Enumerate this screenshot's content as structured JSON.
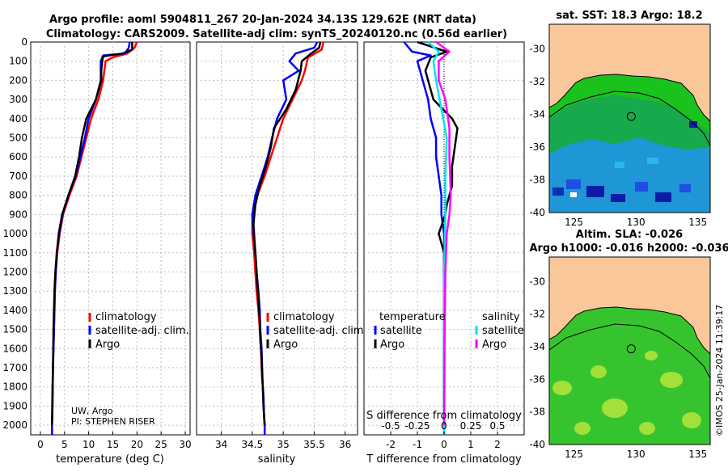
{
  "title": {
    "line1": "Argo profile: aoml 5904811_267 20-Jan-2024 34.13S 129.62E (NRT data)",
    "line2": "Climatology: CARS2009. Satellite-adj clim: synTS_20240120.nc (0.56d earlier)"
  },
  "depth_ticks": [
    "0",
    "100",
    "200",
    "300",
    "400",
    "500",
    "600",
    "700",
    "800",
    "900",
    "1000",
    "1100",
    "1200",
    "1300",
    "1400",
    "1500",
    "1600",
    "1700",
    "1800",
    "1900",
    "2000"
  ],
  "chart_data": [
    {
      "type": "line",
      "name": "temperature-profile",
      "xlabel": "temperature (deg C)",
      "xlim": [
        -2,
        31
      ],
      "ylim": [
        0,
        2050
      ],
      "y_inverted": true,
      "xticks": [
        0,
        5,
        10,
        15,
        20,
        25,
        30
      ],
      "xtick_labels": [
        "0",
        "5",
        "10",
        "15",
        "20",
        "25",
        "30"
      ],
      "legend": [
        "climatology",
        "satellite-adj. clim.",
        "Argo"
      ],
      "legend_placement": "lower-right",
      "note_lines": [
        "UW, Argo",
        "PI: STEPHEN RISER"
      ],
      "series": [
        {
          "name": "climatology",
          "color": "#ff0000",
          "points": [
            [
              20,
              0
            ],
            [
              19.5,
              30
            ],
            [
              18,
              60
            ],
            [
              15,
              80
            ],
            [
              13.5,
              100
            ],
            [
              13,
              200
            ],
            [
              12,
              300
            ],
            [
              10.5,
              400
            ],
            [
              9.5,
              500
            ],
            [
              8.5,
              600
            ],
            [
              7.5,
              700
            ],
            [
              6,
              800
            ],
            [
              4.7,
              900
            ],
            [
              4,
              1000
            ],
            [
              3.5,
              1100
            ],
            [
              3.2,
              1200
            ],
            [
              3,
              1300
            ],
            [
              2.9,
              1400
            ],
            [
              2.8,
              1500
            ],
            [
              2.7,
              1600
            ],
            [
              2.6,
              1700
            ],
            [
              2.55,
              1800
            ],
            [
              2.5,
              1900
            ],
            [
              2.4,
              2000
            ],
            [
              2.4,
              2050
            ]
          ]
        },
        {
          "name": "satellite-adj. clim.",
          "color": "#0000ff",
          "points": [
            [
              18.5,
              0
            ],
            [
              18.3,
              30
            ],
            [
              17.5,
              60
            ],
            [
              13,
              70
            ],
            [
              12.5,
              100
            ],
            [
              12.5,
              200
            ],
            [
              11.5,
              300
            ],
            [
              10,
              400
            ],
            [
              9.2,
              500
            ],
            [
              8.3,
              600
            ],
            [
              7.3,
              700
            ],
            [
              5.8,
              800
            ],
            [
              4.6,
              900
            ],
            [
              3.9,
              1000
            ],
            [
              3.4,
              1100
            ],
            [
              3.2,
              1200
            ],
            [
              3,
              1300
            ],
            [
              2.9,
              1400
            ],
            [
              2.8,
              1500
            ],
            [
              2.7,
              1600
            ],
            [
              2.6,
              1700
            ],
            [
              2.55,
              1800
            ],
            [
              2.5,
              1900
            ],
            [
              2.4,
              2000
            ],
            [
              2.4,
              2050
            ]
          ]
        },
        {
          "name": "Argo",
          "color": "#000000",
          "points": [
            [
              19,
              0
            ],
            [
              19,
              40
            ],
            [
              17,
              60
            ],
            [
              13,
              75
            ],
            [
              12.8,
              100
            ],
            [
              12.6,
              150
            ],
            [
              12.6,
              200
            ],
            [
              11.5,
              300
            ],
            [
              9.5,
              400
            ],
            [
              8.6,
              500
            ],
            [
              8,
              600
            ],
            [
              7.2,
              700
            ],
            [
              5.8,
              800
            ],
            [
              4.5,
              900
            ],
            [
              3.8,
              1000
            ],
            [
              3.4,
              1100
            ],
            [
              3.1,
              1200
            ],
            [
              2.9,
              1300
            ],
            [
              2.8,
              1400
            ],
            [
              2.7,
              1500
            ],
            [
              2.65,
              1600
            ],
            [
              2.6,
              1700
            ],
            [
              2.5,
              1800
            ],
            [
              2.45,
              1900
            ],
            [
              2.4,
              2000
            ]
          ]
        }
      ]
    },
    {
      "type": "line",
      "name": "salinity-profile",
      "xlabel": "salinity",
      "xlim": [
        33.6,
        36.2
      ],
      "ylim": [
        0,
        2050
      ],
      "y_inverted": true,
      "xticks": [
        34,
        34.5,
        35,
        35.5,
        36
      ],
      "xtick_labels": [
        "34",
        "34.5",
        "35",
        "35.5",
        "36"
      ],
      "legend": [
        "climatology",
        "satellite-adj. clim.",
        "Argo"
      ],
      "legend_placement": "lower-right",
      "series": [
        {
          "name": "climatology",
          "color": "#ff0000",
          "points": [
            [
              35.65,
              0
            ],
            [
              35.62,
              40
            ],
            [
              35.4,
              80
            ],
            [
              35.35,
              150
            ],
            [
              35.3,
              200
            ],
            [
              35.15,
              300
            ],
            [
              35.0,
              400
            ],
            [
              34.9,
              500
            ],
            [
              34.8,
              600
            ],
            [
              34.7,
              700
            ],
            [
              34.58,
              800
            ],
            [
              34.5,
              900
            ],
            [
              34.5,
              1000
            ],
            [
              34.53,
              1100
            ],
            [
              34.55,
              1200
            ],
            [
              34.57,
              1300
            ],
            [
              34.6,
              1400
            ],
            [
              34.62,
              1500
            ],
            [
              34.64,
              1600
            ],
            [
              34.65,
              1700
            ],
            [
              34.67,
              1800
            ],
            [
              34.68,
              1900
            ],
            [
              34.7,
              2000
            ],
            [
              34.7,
              2050
            ]
          ]
        },
        {
          "name": "satellite-adj. clim.",
          "color": "#0000ff",
          "points": [
            [
              35.55,
              0
            ],
            [
              35.5,
              30
            ],
            [
              35.2,
              60
            ],
            [
              35.1,
              100
            ],
            [
              35.25,
              150
            ],
            [
              35.0,
              200
            ],
            [
              35.05,
              300
            ],
            [
              34.9,
              400
            ],
            [
              34.82,
              500
            ],
            [
              34.75,
              600
            ],
            [
              34.65,
              700
            ],
            [
              34.55,
              800
            ],
            [
              34.5,
              900
            ],
            [
              34.52,
              1000
            ],
            [
              34.55,
              1100
            ],
            [
              34.57,
              1200
            ],
            [
              34.6,
              1300
            ],
            [
              34.62,
              1400
            ],
            [
              34.63,
              1500
            ],
            [
              34.65,
              1600
            ],
            [
              34.66,
              1700
            ],
            [
              34.67,
              1800
            ],
            [
              34.68,
              1900
            ],
            [
              34.7,
              2000
            ],
            [
              34.7,
              2050
            ]
          ]
        },
        {
          "name": "Argo",
          "color": "#000000",
          "points": [
            [
              35.6,
              0
            ],
            [
              35.58,
              30
            ],
            [
              35.45,
              60
            ],
            [
              35.3,
              100
            ],
            [
              35.28,
              150
            ],
            [
              35.2,
              250
            ],
            [
              35.05,
              350
            ],
            [
              34.85,
              450
            ],
            [
              34.8,
              550
            ],
            [
              34.72,
              650
            ],
            [
              34.62,
              750
            ],
            [
              34.55,
              850
            ],
            [
              34.52,
              950
            ],
            [
              34.54,
              1050
            ],
            [
              34.56,
              1150
            ],
            [
              34.58,
              1250
            ],
            [
              34.6,
              1350
            ],
            [
              34.62,
              1450
            ],
            [
              34.63,
              1550
            ],
            [
              34.65,
              1650
            ],
            [
              34.66,
              1750
            ],
            [
              34.68,
              1850
            ],
            [
              34.69,
              1950
            ],
            [
              34.7,
              2000
            ]
          ]
        }
      ]
    },
    {
      "type": "line",
      "name": "difference-profile",
      "xlabel": "T difference from climatology",
      "top_xlabel": "S difference from climatology",
      "xlim": [
        -3,
        3
      ],
      "ylim": [
        0,
        2050
      ],
      "y_inverted": true,
      "xticks": [
        -2,
        -1,
        0,
        1,
        2
      ],
      "xtick_labels": [
        "-2",
        "-1",
        "0",
        "1",
        "2"
      ],
      "top_tick_labels": [
        "-0.5",
        "-0.25",
        "0",
        "0.25",
        "0.5"
      ],
      "legend_temperature_title": "temperature",
      "legend_salinity_title": "salinity",
      "legend_temperature": [
        "satellite",
        "Argo"
      ],
      "legend_salinity": [
        "satellite",
        "Argo"
      ],
      "series": [
        {
          "name": "temperature satellite",
          "color": "#0000ff",
          "points": [
            [
              -1.5,
              0
            ],
            [
              -1.2,
              50
            ],
            [
              -0.5,
              70
            ],
            [
              -1.0,
              100
            ],
            [
              -0.8,
              200
            ],
            [
              -0.6,
              300
            ],
            [
              -0.5,
              400
            ],
            [
              -0.3,
              500
            ],
            [
              -0.3,
              600
            ],
            [
              -0.2,
              700
            ],
            [
              -0.1,
              800
            ],
            [
              -0.1,
              900
            ],
            [
              0,
              1000
            ],
            [
              0,
              1500
            ],
            [
              0,
              2000
            ],
            [
              0,
              2050
            ]
          ]
        },
        {
          "name": "temperature Argo",
          "color": "#000000",
          "points": [
            [
              -1.0,
              0
            ],
            [
              0.1,
              50
            ],
            [
              -0.5,
              80
            ],
            [
              -0.7,
              150
            ],
            [
              -0.4,
              300
            ],
            [
              0.3,
              400
            ],
            [
              0.5,
              450
            ],
            [
              0.4,
              550
            ],
            [
              0.3,
              650
            ],
            [
              0.3,
              750
            ],
            [
              0.1,
              850
            ],
            [
              0.05,
              900
            ],
            [
              -0.2,
              1000
            ],
            [
              0,
              1100
            ],
            [
              0,
              1500
            ],
            [
              0,
              2000
            ]
          ]
        },
        {
          "name": "salinity satellite",
          "color": "#00e5ee",
          "points": [
            [
              -0.6,
              0
            ],
            [
              -0.2,
              50
            ],
            [
              -0.4,
              100
            ],
            [
              -0.3,
              200
            ],
            [
              -0.1,
              350
            ],
            [
              0.1,
              500
            ],
            [
              0.05,
              700
            ],
            [
              0.05,
              900
            ],
            [
              0.0,
              1200
            ],
            [
              0,
              1600
            ],
            [
              0,
              2000
            ],
            [
              0,
              2050
            ]
          ]
        },
        {
          "name": "salinity Argo",
          "color": "#ff00ff",
          "points": [
            [
              -0.3,
              0
            ],
            [
              0.2,
              50
            ],
            [
              -0.2,
              100
            ],
            [
              -0.2,
              200
            ],
            [
              0.05,
              300
            ],
            [
              0.2,
              450
            ],
            [
              0.2,
              600
            ],
            [
              0.25,
              800
            ],
            [
              0.2,
              900
            ],
            [
              0.1,
              1000
            ],
            [
              0.05,
              1200
            ],
            [
              0.02,
              1500
            ],
            [
              0,
              2000
            ]
          ]
        }
      ]
    },
    {
      "type": "heatmap",
      "name": "sst-map",
      "title": "sat. SST: 18.3 Argo: 18.2",
      "xlim": [
        123,
        136
      ],
      "ylim": [
        -40,
        -28.5
      ],
      "xticks": [
        125,
        130,
        135
      ],
      "yticks": [
        -30,
        -32,
        -34,
        -36,
        -38,
        -40
      ],
      "argo_position": [
        129.62,
        -34.13
      ],
      "colors": {
        "land": "#f9c79a",
        "ocean_north": "#18c818",
        "ocean_mid": "#16a84a",
        "ocean_south": "#1f8fd8",
        "deep": "#0a1da8"
      }
    },
    {
      "type": "heatmap",
      "name": "sla-map",
      "title_line1": "Altim. SLA: -0.026",
      "title_line2": "Argo h1000: -0.016 h2000: -0.036",
      "xlim": [
        123,
        136
      ],
      "ylim": [
        -40,
        -28.5
      ],
      "xticks": [
        125,
        130,
        135
      ],
      "yticks": [
        -30,
        -32,
        -34,
        -36,
        -38,
        -40
      ],
      "argo_position": [
        129.62,
        -34.13
      ],
      "colors": {
        "land": "#f9c79a",
        "ocean": "#32c832",
        "ocean_light": "#b5e83a"
      }
    }
  ],
  "credit": "©IMOS 25-Jan-2024 11:39:17"
}
